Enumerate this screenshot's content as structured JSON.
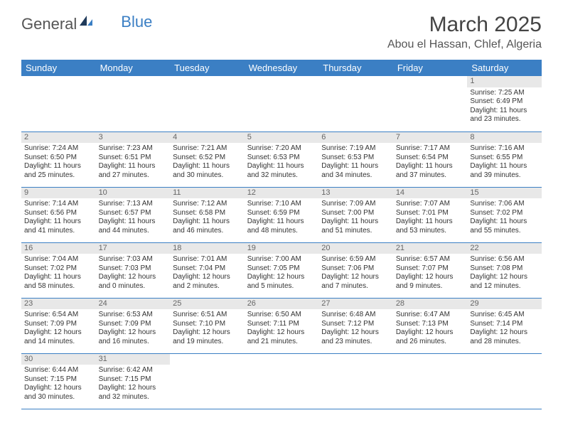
{
  "logo": {
    "general": "General",
    "blue": "Blue"
  },
  "title": "March 2025",
  "location": "Abou el Hassan, Chlef, Algeria",
  "colors": {
    "header_bg": "#3b7fc4",
    "header_fg": "#ffffff",
    "daynum_bg": "#e8e8e8",
    "rule": "#3b7fc4",
    "text": "#333333"
  },
  "day_names": [
    "Sunday",
    "Monday",
    "Tuesday",
    "Wednesday",
    "Thursday",
    "Friday",
    "Saturday"
  ],
  "weeks": [
    [
      null,
      null,
      null,
      null,
      null,
      null,
      {
        "n": "1",
        "sr": "Sunrise: 7:25 AM",
        "ss": "Sunset: 6:49 PM",
        "d1": "Daylight: 11 hours",
        "d2": "and 23 minutes."
      }
    ],
    [
      {
        "n": "2",
        "sr": "Sunrise: 7:24 AM",
        "ss": "Sunset: 6:50 PM",
        "d1": "Daylight: 11 hours",
        "d2": "and 25 minutes."
      },
      {
        "n": "3",
        "sr": "Sunrise: 7:23 AM",
        "ss": "Sunset: 6:51 PM",
        "d1": "Daylight: 11 hours",
        "d2": "and 27 minutes."
      },
      {
        "n": "4",
        "sr": "Sunrise: 7:21 AM",
        "ss": "Sunset: 6:52 PM",
        "d1": "Daylight: 11 hours",
        "d2": "and 30 minutes."
      },
      {
        "n": "5",
        "sr": "Sunrise: 7:20 AM",
        "ss": "Sunset: 6:53 PM",
        "d1": "Daylight: 11 hours",
        "d2": "and 32 minutes."
      },
      {
        "n": "6",
        "sr": "Sunrise: 7:19 AM",
        "ss": "Sunset: 6:53 PM",
        "d1": "Daylight: 11 hours",
        "d2": "and 34 minutes."
      },
      {
        "n": "7",
        "sr": "Sunrise: 7:17 AM",
        "ss": "Sunset: 6:54 PM",
        "d1": "Daylight: 11 hours",
        "d2": "and 37 minutes."
      },
      {
        "n": "8",
        "sr": "Sunrise: 7:16 AM",
        "ss": "Sunset: 6:55 PM",
        "d1": "Daylight: 11 hours",
        "d2": "and 39 minutes."
      }
    ],
    [
      {
        "n": "9",
        "sr": "Sunrise: 7:14 AM",
        "ss": "Sunset: 6:56 PM",
        "d1": "Daylight: 11 hours",
        "d2": "and 41 minutes."
      },
      {
        "n": "10",
        "sr": "Sunrise: 7:13 AM",
        "ss": "Sunset: 6:57 PM",
        "d1": "Daylight: 11 hours",
        "d2": "and 44 minutes."
      },
      {
        "n": "11",
        "sr": "Sunrise: 7:12 AM",
        "ss": "Sunset: 6:58 PM",
        "d1": "Daylight: 11 hours",
        "d2": "and 46 minutes."
      },
      {
        "n": "12",
        "sr": "Sunrise: 7:10 AM",
        "ss": "Sunset: 6:59 PM",
        "d1": "Daylight: 11 hours",
        "d2": "and 48 minutes."
      },
      {
        "n": "13",
        "sr": "Sunrise: 7:09 AM",
        "ss": "Sunset: 7:00 PM",
        "d1": "Daylight: 11 hours",
        "d2": "and 51 minutes."
      },
      {
        "n": "14",
        "sr": "Sunrise: 7:07 AM",
        "ss": "Sunset: 7:01 PM",
        "d1": "Daylight: 11 hours",
        "d2": "and 53 minutes."
      },
      {
        "n": "15",
        "sr": "Sunrise: 7:06 AM",
        "ss": "Sunset: 7:02 PM",
        "d1": "Daylight: 11 hours",
        "d2": "and 55 minutes."
      }
    ],
    [
      {
        "n": "16",
        "sr": "Sunrise: 7:04 AM",
        "ss": "Sunset: 7:02 PM",
        "d1": "Daylight: 11 hours",
        "d2": "and 58 minutes."
      },
      {
        "n": "17",
        "sr": "Sunrise: 7:03 AM",
        "ss": "Sunset: 7:03 PM",
        "d1": "Daylight: 12 hours",
        "d2": "and 0 minutes."
      },
      {
        "n": "18",
        "sr": "Sunrise: 7:01 AM",
        "ss": "Sunset: 7:04 PM",
        "d1": "Daylight: 12 hours",
        "d2": "and 2 minutes."
      },
      {
        "n": "19",
        "sr": "Sunrise: 7:00 AM",
        "ss": "Sunset: 7:05 PM",
        "d1": "Daylight: 12 hours",
        "d2": "and 5 minutes."
      },
      {
        "n": "20",
        "sr": "Sunrise: 6:59 AM",
        "ss": "Sunset: 7:06 PM",
        "d1": "Daylight: 12 hours",
        "d2": "and 7 minutes."
      },
      {
        "n": "21",
        "sr": "Sunrise: 6:57 AM",
        "ss": "Sunset: 7:07 PM",
        "d1": "Daylight: 12 hours",
        "d2": "and 9 minutes."
      },
      {
        "n": "22",
        "sr": "Sunrise: 6:56 AM",
        "ss": "Sunset: 7:08 PM",
        "d1": "Daylight: 12 hours",
        "d2": "and 12 minutes."
      }
    ],
    [
      {
        "n": "23",
        "sr": "Sunrise: 6:54 AM",
        "ss": "Sunset: 7:09 PM",
        "d1": "Daylight: 12 hours",
        "d2": "and 14 minutes."
      },
      {
        "n": "24",
        "sr": "Sunrise: 6:53 AM",
        "ss": "Sunset: 7:09 PM",
        "d1": "Daylight: 12 hours",
        "d2": "and 16 minutes."
      },
      {
        "n": "25",
        "sr": "Sunrise: 6:51 AM",
        "ss": "Sunset: 7:10 PM",
        "d1": "Daylight: 12 hours",
        "d2": "and 19 minutes."
      },
      {
        "n": "26",
        "sr": "Sunrise: 6:50 AM",
        "ss": "Sunset: 7:11 PM",
        "d1": "Daylight: 12 hours",
        "d2": "and 21 minutes."
      },
      {
        "n": "27",
        "sr": "Sunrise: 6:48 AM",
        "ss": "Sunset: 7:12 PM",
        "d1": "Daylight: 12 hours",
        "d2": "and 23 minutes."
      },
      {
        "n": "28",
        "sr": "Sunrise: 6:47 AM",
        "ss": "Sunset: 7:13 PM",
        "d1": "Daylight: 12 hours",
        "d2": "and 26 minutes."
      },
      {
        "n": "29",
        "sr": "Sunrise: 6:45 AM",
        "ss": "Sunset: 7:14 PM",
        "d1": "Daylight: 12 hours",
        "d2": "and 28 minutes."
      }
    ],
    [
      {
        "n": "30",
        "sr": "Sunrise: 6:44 AM",
        "ss": "Sunset: 7:15 PM",
        "d1": "Daylight: 12 hours",
        "d2": "and 30 minutes."
      },
      {
        "n": "31",
        "sr": "Sunrise: 6:42 AM",
        "ss": "Sunset: 7:15 PM",
        "d1": "Daylight: 12 hours",
        "d2": "and 32 minutes."
      },
      null,
      null,
      null,
      null,
      null
    ]
  ]
}
